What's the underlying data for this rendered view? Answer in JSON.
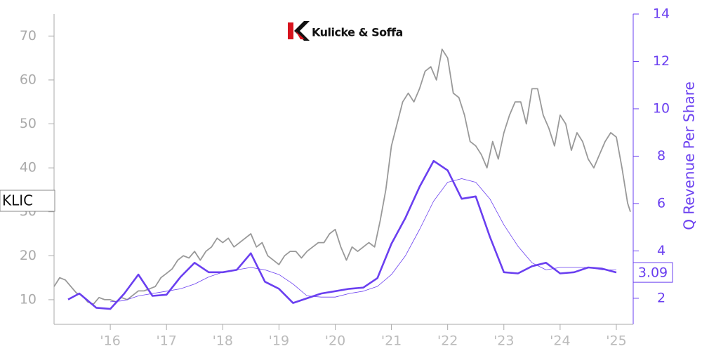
{
  "chart_data": {
    "type": "line",
    "logo": "Kulicke & Soffa",
    "y2_label": "Q Revenue Per Share",
    "xlim": [
      2015.0,
      2025.3
    ],
    "xticks": [
      {
        "value": 2016,
        "label": "'16"
      },
      {
        "value": 2017,
        "label": "'17"
      },
      {
        "value": 2018,
        "label": "'18"
      },
      {
        "value": 2019,
        "label": "'19"
      },
      {
        "value": 2020,
        "label": "'20"
      },
      {
        "value": 2021,
        "label": "'21"
      },
      {
        "value": 2022,
        "label": "'22"
      },
      {
        "value": 2023,
        "label": "'23"
      },
      {
        "value": 2024,
        "label": "'24"
      },
      {
        "value": 2025,
        "label": "'25"
      }
    ],
    "ylim": [
      4.4,
      75
    ],
    "yticks": [
      10,
      20,
      30,
      40,
      50,
      60,
      70
    ],
    "y2lim": [
      0.9,
      14
    ],
    "y2ticks": [
      2,
      4,
      6,
      8,
      10,
      12,
      14
    ],
    "series": [
      {
        "name": "KLIC",
        "color": "#999999",
        "axis": "y",
        "width": 1.8,
        "x": [
          2015.0,
          2015.1,
          2015.2,
          2015.3,
          2015.4,
          2015.5,
          2015.6,
          2015.7,
          2015.8,
          2015.9,
          2016.0,
          2016.1,
          2016.2,
          2016.3,
          2016.4,
          2016.5,
          2016.6,
          2016.7,
          2016.8,
          2016.9,
          2017.0,
          2017.1,
          2017.2,
          2017.3,
          2017.4,
          2017.5,
          2017.6,
          2017.7,
          2017.8,
          2017.9,
          2018.0,
          2018.1,
          2018.2,
          2018.3,
          2018.4,
          2018.5,
          2018.6,
          2018.7,
          2018.8,
          2018.9,
          2019.0,
          2019.1,
          2019.2,
          2019.3,
          2019.4,
          2019.5,
          2019.6,
          2019.7,
          2019.8,
          2019.9,
          2020.0,
          2020.1,
          2020.2,
          2020.3,
          2020.4,
          2020.5,
          2020.6,
          2020.7,
          2020.8,
          2020.9,
          2021.0,
          2021.1,
          2021.2,
          2021.3,
          2021.4,
          2021.5,
          2021.6,
          2021.7,
          2021.8,
          2021.9,
          2022.0,
          2022.1,
          2022.2,
          2022.3,
          2022.4,
          2022.5,
          2022.6,
          2022.7,
          2022.8,
          2022.9,
          2023.0,
          2023.1,
          2023.2,
          2023.3,
          2023.4,
          2023.5,
          2023.6,
          2023.7,
          2023.8,
          2023.9,
          2024.0,
          2024.1,
          2024.2,
          2024.3,
          2024.4,
          2024.5,
          2024.6,
          2024.7,
          2024.8,
          2024.9,
          2025.0,
          2025.1,
          2025.2,
          2025.25
        ],
        "values": [
          13,
          15,
          14.5,
          13,
          11.5,
          11,
          9.5,
          9,
          10.5,
          10,
          10,
          9.5,
          10.5,
          10,
          11,
          12,
          12,
          12.5,
          13,
          15,
          16,
          17,
          19,
          20,
          19.5,
          21,
          19,
          21,
          22,
          24,
          23,
          24,
          22,
          23,
          24,
          25,
          22,
          23,
          20,
          19,
          18,
          20,
          21,
          21,
          19.5,
          21,
          22,
          23,
          23,
          25,
          26,
          22,
          19,
          22,
          21,
          22,
          23,
          22,
          28,
          35,
          45,
          50,
          55,
          57,
          55,
          58,
          62,
          63,
          60,
          67,
          65,
          57,
          56,
          52,
          46,
          45,
          43,
          40,
          46,
          42,
          48,
          52,
          55,
          55,
          50,
          58,
          58,
          52,
          49,
          45,
          52,
          50,
          44,
          48,
          46,
          42,
          40,
          43,
          46,
          48,
          47,
          40,
          32,
          30
        ]
      },
      {
        "color": "#6a3ff0",
        "axis": "y2",
        "width": 0.8,
        "x": [
          2016.0,
          2016.25,
          2016.5,
          2016.75,
          2017.0,
          2017.25,
          2017.5,
          2017.75,
          2018.0,
          2018.25,
          2018.5,
          2018.75,
          2019.0,
          2019.25,
          2019.5,
          2019.75,
          2020.0,
          2020.25,
          2020.5,
          2020.75,
          2021.0,
          2021.25,
          2021.5,
          2021.75,
          2022.0,
          2022.25,
          2022.5,
          2022.75,
          2023.0,
          2023.25,
          2023.5,
          2023.75,
          2024.0,
          2024.25,
          2024.5,
          2024.75,
          2025.0
        ],
        "values": [
          1.85,
          1.9,
          2.1,
          2.2,
          2.3,
          2.4,
          2.6,
          2.9,
          3.1,
          3.2,
          3.3,
          3.2,
          3.0,
          2.6,
          2.1,
          2.05,
          2.05,
          2.2,
          2.3,
          2.5,
          3.0,
          3.8,
          4.9,
          6.1,
          6.9,
          7.05,
          6.9,
          6.2,
          5.1,
          4.2,
          3.5,
          3.2,
          3.3,
          3.3,
          3.3,
          3.2,
          3.2
        ]
      },
      {
        "color": "#6a3ff0",
        "axis": "y2",
        "width": 2.6,
        "x": [
          2015.25,
          2015.45,
          2015.75,
          2016.0,
          2016.25,
          2016.5,
          2016.75,
          2017.0,
          2017.25,
          2017.5,
          2017.75,
          2018.0,
          2018.25,
          2018.5,
          2018.75,
          2019.0,
          2019.25,
          2019.5,
          2019.75,
          2020.0,
          2020.25,
          2020.5,
          2020.75,
          2021.0,
          2021.25,
          2021.5,
          2021.75,
          2022.0,
          2022.25,
          2022.5,
          2022.75,
          2023.0,
          2023.25,
          2023.5,
          2023.75,
          2024.0,
          2024.25,
          2024.5,
          2024.75,
          2025.0
        ],
        "values": [
          1.95,
          2.2,
          1.6,
          1.55,
          2.2,
          3.0,
          2.1,
          2.15,
          2.9,
          3.5,
          3.1,
          3.1,
          3.2,
          3.9,
          2.7,
          2.4,
          1.8,
          2.0,
          2.2,
          2.3,
          2.4,
          2.45,
          2.85,
          4.3,
          5.4,
          6.7,
          7.8,
          7.4,
          6.2,
          6.3,
          4.6,
          3.1,
          3.05,
          3.35,
          3.5,
          3.05,
          3.1,
          3.3,
          3.25,
          3.09
        ]
      }
    ]
  }
}
